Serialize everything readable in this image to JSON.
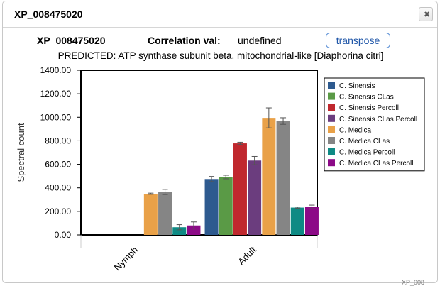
{
  "dialog": {
    "title": "XP_008475020",
    "close_icon": "close-icon"
  },
  "header": {
    "accession": "XP_008475020",
    "correlation_label": "Correlation val:",
    "correlation_value": "undefined",
    "transpose_label": "transpose",
    "subtitle": "PREDICTED: ATP synthase subunit beta, mitochondrial-like [Diaphorina citri]"
  },
  "chart_data": {
    "type": "bar",
    "ylabel": "Spectral count",
    "ylim": [
      0,
      1400
    ],
    "yticks": [
      "0.00",
      "200.00",
      "400.00",
      "600.00",
      "800.00",
      "1000.00",
      "1200.00",
      "1400.00"
    ],
    "categories": [
      "Nymph",
      "Adult"
    ],
    "grid": false,
    "legend_position": "right",
    "series": [
      {
        "name": "C. Sinensis",
        "color": "#2e5a8f",
        "values": [
          0,
          475
        ],
        "errors": [
          0,
          22
        ]
      },
      {
        "name": "C. Sinensis CLas",
        "color": "#5a9a46",
        "values": [
          0,
          492
        ],
        "errors": [
          0,
          15
        ]
      },
      {
        "name": "C. Sinensis Percoll",
        "color": "#c0282e",
        "values": [
          0,
          778
        ],
        "errors": [
          0,
          10
        ]
      },
      {
        "name": "C. Sinensis CLas Percoll",
        "color": "#6b3d7e",
        "values": [
          0,
          632
        ],
        "errors": [
          0,
          35
        ]
      },
      {
        "name": "C. Medica",
        "color": "#e9a148",
        "values": [
          350,
          995
        ],
        "errors": [
          5,
          85
        ]
      },
      {
        "name": "C. Medica CLas",
        "color": "#858585",
        "values": [
          365,
          968
        ],
        "errors": [
          22,
          28
        ]
      },
      {
        "name": "C. Medica Percoll",
        "color": "#0e8a84",
        "values": [
          65,
          232
        ],
        "errors": [
          22,
          5
        ]
      },
      {
        "name": "C. Medica CLas Percoll",
        "color": "#8c0a87",
        "values": [
          80,
          238
        ],
        "errors": [
          30,
          15
        ]
      }
    ]
  },
  "footer": {
    "corner_text": "XP_008"
  }
}
